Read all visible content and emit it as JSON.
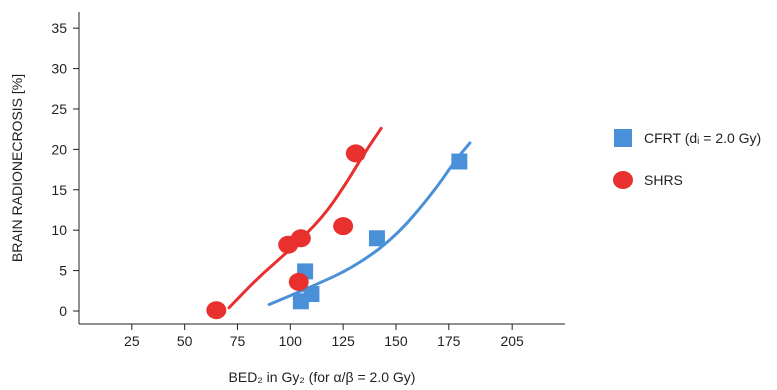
{
  "chart_data": {
    "type": "scatter",
    "xlabel": "BED₂ in Gy₂ (for α/β = 2.0 Gy)",
    "ylabel": "BRAIN RADIONECROSIS [%]",
    "xlim": [
      0,
      230
    ],
    "ylim": [
      0,
      37
    ],
    "xticks": [
      {
        "value": 25,
        "label": "25"
      },
      {
        "value": 50,
        "label": "50"
      },
      {
        "value": 75,
        "label": "75"
      },
      {
        "value": 100,
        "label": "100"
      },
      {
        "value": 125,
        "label": "125"
      },
      {
        "value": 150,
        "label": "150"
      },
      {
        "value": 175,
        "label": "175"
      },
      {
        "value": 205,
        "label": "205"
      }
    ],
    "yticks": [
      {
        "value": 0,
        "label": "0"
      },
      {
        "value": 5,
        "label": "5"
      },
      {
        "value": 10,
        "label": "10"
      },
      {
        "value": 15,
        "label": "15"
      },
      {
        "value": 20,
        "label": "20"
      },
      {
        "value": 25,
        "label": "25"
      },
      {
        "value": 30,
        "label": "30"
      },
      {
        "value": 35,
        "label": "35"
      }
    ],
    "grid": false,
    "legend_position": "right",
    "series": [
      {
        "name": "CFRT (dᵢ = 2.0 Gy)",
        "color": "#4a90d9",
        "marker": "square",
        "points": [
          {
            "x": 105,
            "y": 1.2
          },
          {
            "x": 110,
            "y": 2.1
          },
          {
            "x": 107,
            "y": 4.9
          },
          {
            "x": 141,
            "y": 9.0
          },
          {
            "x": 180,
            "y": 18.5
          }
        ],
        "fit": [
          {
            "x": 90,
            "y": 0.8
          },
          {
            "x": 110,
            "y": 3.0
          },
          {
            "x": 130,
            "y": 5.4
          },
          {
            "x": 150,
            "y": 9.2
          },
          {
            "x": 168,
            "y": 14.8
          },
          {
            "x": 178,
            "y": 18.6
          },
          {
            "x": 185,
            "y": 20.8
          }
        ]
      },
      {
        "name": "SHRS",
        "color": "#e8302e",
        "marker": "circle",
        "points": [
          {
            "x": 65,
            "y": 0.1
          },
          {
            "x": 104,
            "y": 3.6
          },
          {
            "x": 99,
            "y": 8.2
          },
          {
            "x": 105,
            "y": 9.0
          },
          {
            "x": 125,
            "y": 10.5
          },
          {
            "x": 131,
            "y": 19.5
          }
        ],
        "fit": [
          {
            "x": 71,
            "y": 0.4
          },
          {
            "x": 85,
            "y": 4.2
          },
          {
            "x": 100,
            "y": 7.6
          },
          {
            "x": 115,
            "y": 11.5
          },
          {
            "x": 125,
            "y": 15.2
          },
          {
            "x": 135,
            "y": 19.5
          },
          {
            "x": 143,
            "y": 22.6
          }
        ]
      }
    ]
  }
}
